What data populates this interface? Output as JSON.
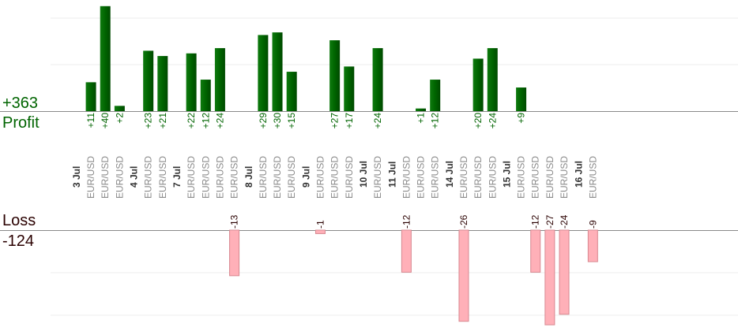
{
  "chart_data": {
    "type": "bar",
    "categories": [
      {
        "date": "3 Jul",
        "trades": [
          {
            "pair": "EUR/USD",
            "value": 11
          },
          {
            "pair": "EUR/USD",
            "value": 40
          },
          {
            "pair": "EUR/USD",
            "value": 2
          }
        ]
      },
      {
        "date": "4 Jul",
        "trades": [
          {
            "pair": "EUR/USD",
            "value": 23
          },
          {
            "pair": "EUR/USD",
            "value": 21
          }
        ]
      },
      {
        "date": "7 Jul",
        "trades": [
          {
            "pair": "EUR/USD",
            "value": 22
          },
          {
            "pair": "EUR/USD",
            "value": 12
          },
          {
            "pair": "EUR/USD",
            "value": 24
          },
          {
            "pair": "EUR/USD",
            "value": -13
          }
        ]
      },
      {
        "date": "8 Jul",
        "trades": [
          {
            "pair": "EUR/USD",
            "value": 29
          },
          {
            "pair": "EUR/USD",
            "value": 30
          },
          {
            "pair": "EUR/USD",
            "value": 15
          }
        ]
      },
      {
        "date": "9 Jul",
        "trades": [
          {
            "pair": "EUR/USD",
            "value": -1
          },
          {
            "pair": "EUR/USD",
            "value": 27
          },
          {
            "pair": "EUR/USD",
            "value": 17
          }
        ]
      },
      {
        "date": "10 Jul",
        "trades": [
          {
            "pair": "EUR/USD",
            "value": 24
          }
        ]
      },
      {
        "date": "11 Jul",
        "trades": [
          {
            "pair": "EUR/USD",
            "value": -12
          },
          {
            "pair": "EUR/USD",
            "value": 1
          },
          {
            "pair": "EUR/USD",
            "value": 12
          }
        ]
      },
      {
        "date": "14 Jul",
        "trades": [
          {
            "pair": "EUR/USD",
            "value": -26
          },
          {
            "pair": "EUR/USD",
            "value": 20
          },
          {
            "pair": "EUR/USD",
            "value": 24
          }
        ]
      },
      {
        "date": "15 Jul",
        "trades": [
          {
            "pair": "EUR/USD",
            "value": 9
          },
          {
            "pair": "EUR/USD",
            "value": -12
          },
          {
            "pair": "EUR/USD",
            "value": -27
          },
          {
            "pair": "EUR/USD",
            "value": -24
          }
        ]
      },
      {
        "date": "16 Jul",
        "trades": [
          {
            "pair": "EUR/USD",
            "value": -9
          }
        ]
      }
    ],
    "profit_label": "Profit",
    "profit_total": "+363",
    "loss_label": "Loss",
    "loss_total": "-124",
    "colors": {
      "profit": "#006400",
      "loss": "#ffb0b8",
      "loss_border": "#d88890",
      "profit_text": "#006400",
      "loss_text": "#2a0000"
    }
  }
}
